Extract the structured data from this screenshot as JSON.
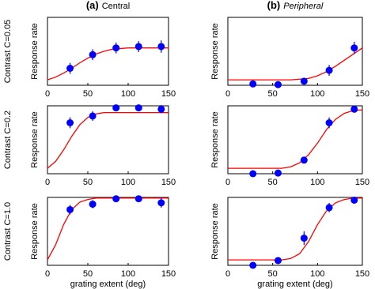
{
  "chart_data": [
    {
      "type": "scatter",
      "panel": "(a)",
      "title": "Central",
      "row_label": "Contrast C=0.05",
      "ylabel": "Response rate",
      "x": [
        28,
        56,
        85,
        113,
        141
      ],
      "values": [
        0.25,
        0.45,
        0.55,
        0.57,
        0.57
      ],
      "errors": [
        0.08,
        0.08,
        0.08,
        0.08,
        0.09
      ],
      "color": "#0000ff",
      "fit": {
        "x": [
          0,
          10,
          20,
          30,
          40,
          50,
          60,
          70,
          80,
          90,
          100,
          110,
          120,
          130,
          140,
          150
        ],
        "values": [
          0.08,
          0.12,
          0.18,
          0.25,
          0.33,
          0.4,
          0.46,
          0.5,
          0.53,
          0.54,
          0.55,
          0.55,
          0.55,
          0.55,
          0.55,
          0.55
        ],
        "color": "#ff0000"
      },
      "xlim": [
        0,
        150
      ],
      "xticks": [
        0,
        50,
        100,
        150
      ],
      "ylim": [
        0,
        1
      ]
    },
    {
      "type": "scatter",
      "panel": "(b)",
      "title": "Peripheral",
      "ylabel": "Response rate",
      "x": [
        28,
        56,
        85,
        113,
        141
      ],
      "values": [
        0.02,
        0.01,
        0.06,
        0.22,
        0.55
      ],
      "errors": [
        0.02,
        0.02,
        0.04,
        0.08,
        0.09
      ],
      "color": "#0000ff",
      "fit": {
        "x": [
          0,
          10,
          20,
          30,
          40,
          50,
          60,
          70,
          80,
          90,
          100,
          110,
          120,
          130,
          140,
          150
        ],
        "values": [
          0.08,
          0.08,
          0.08,
          0.08,
          0.08,
          0.08,
          0.08,
          0.08,
          0.09,
          0.1,
          0.14,
          0.2,
          0.28,
          0.37,
          0.46,
          0.55
        ],
        "color": "#ff0000"
      },
      "xlim": [
        0,
        150
      ],
      "xticks": [
        0,
        50,
        100,
        150
      ],
      "ylim": [
        0,
        1
      ]
    },
    {
      "type": "scatter",
      "row_label": "Contrast C=0.2",
      "ylabel": "Response rate",
      "x": [
        28,
        56,
        85,
        113,
        141
      ],
      "values": [
        0.75,
        0.85,
        0.97,
        0.97,
        0.95
      ],
      "errors": [
        0.08,
        0.07,
        0.04,
        0.04,
        0.06
      ],
      "color": "#0000ff",
      "fit": {
        "x": [
          0,
          10,
          20,
          30,
          40,
          50,
          60,
          70,
          80,
          90,
          100,
          110,
          120,
          130,
          140,
          150
        ],
        "values": [
          0.08,
          0.18,
          0.35,
          0.55,
          0.72,
          0.83,
          0.88,
          0.9,
          0.9,
          0.9,
          0.9,
          0.9,
          0.9,
          0.9,
          0.9,
          0.9
        ],
        "color": "#ff0000"
      },
      "xlim": [
        0,
        150
      ],
      "xticks": [
        0,
        50,
        100,
        150
      ],
      "ylim": [
        0,
        1
      ]
    },
    {
      "type": "scatter",
      "ylabel": "Response rate",
      "x": [
        28,
        56,
        85,
        113,
        141
      ],
      "values": [
        0.0,
        0.01,
        0.2,
        0.75,
        0.95
      ],
      "errors": [
        0.02,
        0.02,
        0.05,
        0.08,
        0.05
      ],
      "color": "#0000ff",
      "fit": {
        "x": [
          0,
          10,
          20,
          30,
          40,
          50,
          60,
          70,
          80,
          90,
          100,
          110,
          120,
          130,
          140,
          150
        ],
        "values": [
          0.08,
          0.08,
          0.08,
          0.08,
          0.08,
          0.08,
          0.08,
          0.1,
          0.16,
          0.28,
          0.45,
          0.65,
          0.8,
          0.89,
          0.93,
          0.94
        ],
        "color": "#ff0000"
      },
      "xlim": [
        0,
        150
      ],
      "xticks": [
        0,
        50,
        100,
        150
      ],
      "ylim": [
        0,
        1
      ]
    },
    {
      "type": "scatter",
      "row_label": "Contrast C=1.0",
      "ylabel": "Response rate",
      "xlabel": "grating extent (deg)",
      "x": [
        28,
        56,
        85,
        113,
        141
      ],
      "values": [
        0.82,
        0.9,
        0.98,
        0.98,
        0.92
      ],
      "errors": [
        0.07,
        0.06,
        0.04,
        0.04,
        0.07
      ],
      "color": "#0000ff",
      "fit": {
        "x": [
          0,
          10,
          20,
          30,
          40,
          50,
          60,
          70,
          80,
          90,
          100,
          110,
          120,
          130,
          140,
          150
        ],
        "values": [
          0.08,
          0.3,
          0.6,
          0.82,
          0.93,
          0.97,
          0.99,
          0.99,
          0.99,
          0.99,
          0.99,
          0.99,
          0.99,
          0.99,
          0.99,
          0.99
        ],
        "color": "#ff0000"
      },
      "xlim": [
        0,
        150
      ],
      "xticks": [
        0,
        50,
        100,
        150
      ],
      "ylim": [
        0,
        1
      ]
    },
    {
      "type": "scatter",
      "ylabel": "Response rate",
      "xlabel": "grating extent (deg)",
      "x": [
        28,
        56,
        85,
        113,
        141
      ],
      "values": [
        0.0,
        0.07,
        0.4,
        0.85,
        0.96
      ],
      "errors": [
        0.02,
        0.05,
        0.1,
        0.07,
        0.05
      ],
      "color": "#0000ff",
      "fit": {
        "x": [
          0,
          10,
          20,
          30,
          40,
          50,
          60,
          70,
          80,
          90,
          100,
          110,
          120,
          130,
          140,
          150
        ],
        "values": [
          0.08,
          0.08,
          0.08,
          0.08,
          0.08,
          0.08,
          0.08,
          0.1,
          0.17,
          0.35,
          0.6,
          0.8,
          0.92,
          0.97,
          0.99,
          0.99
        ],
        "color": "#ff0000"
      },
      "xlim": [
        0,
        150
      ],
      "xticks": [
        0,
        50,
        100,
        150
      ],
      "ylim": [
        0,
        1
      ]
    }
  ]
}
